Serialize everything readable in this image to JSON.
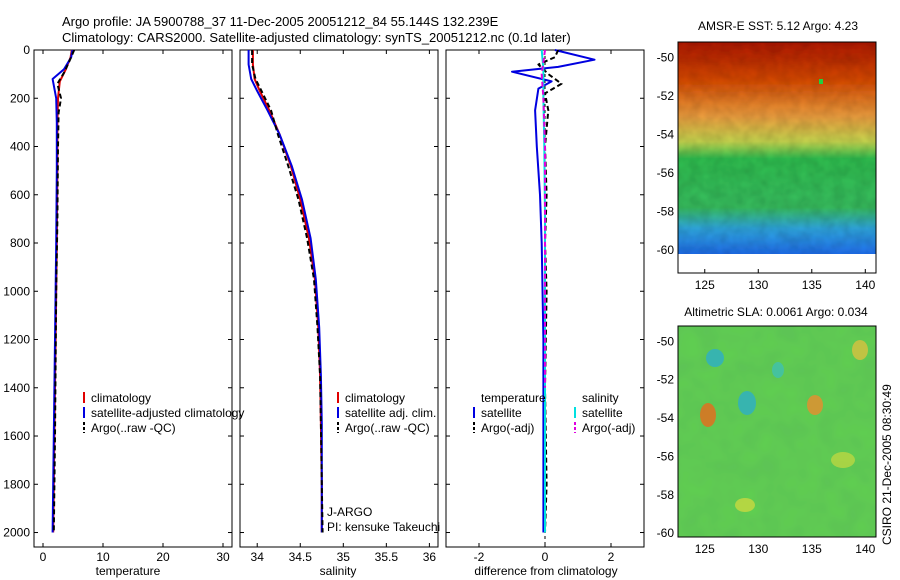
{
  "title": {
    "line1": "Argo profile: JA 5900788_37 11-Dec-2005 20051212_84 55.144S 132.239E",
    "line2": "Climatology: CARS2000. Satellite-adjusted climatology: synTS_20051212.nc (0.1d later)"
  },
  "credit": "CSIRO 21-Dec-2005 08:30:49",
  "colors": {
    "clim": "#e00000",
    "sat": "#0000e0",
    "argo": "#000000",
    "sal_sat": "#00e0e0",
    "sal_argo": "#e000e0"
  },
  "chart_data": [
    {
      "type": "line",
      "id": "temperature",
      "xlabel": "temperature",
      "ylabel": "",
      "xlim": [
        -1.5,
        31.5
      ],
      "ylim": [
        2060,
        0
      ],
      "xticks": [
        0,
        10,
        20,
        30
      ],
      "yticks": [
        0,
        200,
        400,
        600,
        800,
        1000,
        1200,
        1400,
        1600,
        1800,
        2000
      ],
      "legend": [
        "climatology",
        "satellite-adjusted climatology",
        "Argo(..raw -QC)"
      ],
      "series": [
        {
          "name": "climatology",
          "style": "clim",
          "x": [
            4.8,
            4.6,
            3.8,
            2.8,
            2.5,
            2.4,
            2.4,
            2.3,
            2.2,
            2.1,
            2.0,
            1.9,
            1.8,
            1.7
          ],
          "y": [
            0,
            30,
            80,
            130,
            200,
            300,
            500,
            800,
            1000,
            1200,
            1400,
            1600,
            1800,
            2000
          ]
        },
        {
          "name": "satellite-adjusted climatology",
          "style": "sat",
          "x": [
            4.9,
            4.7,
            3.5,
            1.6,
            2.2,
            2.3,
            2.3,
            2.2,
            2.1,
            2.0,
            1.9,
            1.8,
            1.7,
            1.6
          ],
          "y": [
            0,
            30,
            80,
            120,
            200,
            300,
            500,
            800,
            1000,
            1200,
            1400,
            1600,
            1800,
            2000
          ]
        },
        {
          "name": "Argo(..raw -QC)",
          "style": "argo",
          "x": [
            5.2,
            4.5,
            3.6,
            2.4,
            3.0,
            2.6,
            2.5,
            2.4,
            2.2,
            2.1,
            2.0,
            1.9,
            1.8
          ],
          "y": [
            0,
            40,
            90,
            140,
            200,
            260,
            400,
            700,
            1000,
            1300,
            1600,
            1800,
            2000
          ]
        }
      ]
    },
    {
      "type": "line",
      "id": "salinity",
      "xlabel": "salinity",
      "ylabel": "",
      "xlim": [
        33.8,
        36.1
      ],
      "ylim": [
        2060,
        0
      ],
      "xticks": [
        34,
        34.5,
        35,
        35.5,
        36
      ],
      "xtick_labels": [
        "34",
        "34.5",
        "35",
        "35.5",
        "36"
      ],
      "yticks": [
        0,
        200,
        400,
        600,
        800,
        1000,
        1200,
        1400,
        1600,
        1800,
        2000
      ],
      "legend": [
        "climatology",
        "satellite adj. clim.",
        "Argo(..raw -QC)"
      ],
      "annotations": [
        "J-ARGO",
        "PI: kensuke Takeuchi"
      ],
      "series": [
        {
          "name": "climatology",
          "style": "clim",
          "x": [
            33.95,
            33.95,
            33.97,
            34.03,
            34.14,
            34.26,
            34.39,
            34.5,
            34.6,
            34.67,
            34.71,
            34.73,
            34.74,
            34.75,
            34.75
          ],
          "y": [
            0,
            60,
            120,
            170,
            250,
            350,
            480,
            620,
            780,
            950,
            1150,
            1350,
            1550,
            1800,
            2000
          ]
        },
        {
          "name": "satellite adj. clim.",
          "style": "sat",
          "x": [
            33.9,
            33.9,
            33.93,
            34.0,
            34.12,
            34.26,
            34.4,
            34.52,
            34.62,
            34.68,
            34.72,
            34.74,
            34.75,
            34.75,
            34.75
          ],
          "y": [
            0,
            60,
            120,
            170,
            250,
            350,
            480,
            620,
            780,
            950,
            1150,
            1350,
            1550,
            1800,
            2000
          ]
        },
        {
          "name": "Argo(..raw -QC)",
          "style": "argo",
          "x": [
            33.94,
            33.94,
            33.98,
            34.05,
            34.16,
            34.24,
            34.36,
            34.48,
            34.58,
            34.66,
            34.7,
            34.73,
            34.74,
            34.75,
            34.76
          ],
          "y": [
            0,
            60,
            120,
            170,
            250,
            350,
            480,
            620,
            780,
            950,
            1150,
            1350,
            1550,
            1800,
            2000
          ]
        }
      ]
    },
    {
      "type": "line",
      "id": "difference",
      "xlabel": "difference from climatology",
      "ylabel": "",
      "xlim": [
        -3,
        3
      ],
      "ylim": [
        2060,
        0
      ],
      "xticks": [
        -2,
        0,
        2
      ],
      "yticks": [
        0,
        200,
        400,
        600,
        800,
        1000,
        1200,
        1400,
        1600,
        1800,
        2000
      ],
      "legend_headers": [
        "temperature",
        "salinity"
      ],
      "legend": [
        "satellite",
        "Argo(-adj)",
        "satellite",
        "Argo(-adj)"
      ],
      "series": [
        {
          "name": "temperature satellite",
          "style": "sat",
          "x": [
            0.3,
            1.5,
            0.4,
            -1.0,
            0.2,
            -0.2,
            -0.3,
            -0.25,
            -0.15,
            -0.1,
            -0.05,
            -0.05,
            -0.05
          ],
          "y": [
            0,
            40,
            70,
            90,
            130,
            160,
            250,
            400,
            600,
            800,
            1200,
            1600,
            2000
          ]
        },
        {
          "name": "temperature Argo(-adj)",
          "style": "argo",
          "x": [
            0.4,
            0.3,
            -0.2,
            0.1,
            0.5,
            0.0,
            0.1,
            0.0,
            0.05,
            0.0,
            0.05,
            0.0,
            0.05,
            0.0
          ],
          "y": [
            0,
            30,
            60,
            100,
            140,
            180,
            250,
            400,
            600,
            800,
            1000,
            1400,
            1800,
            2000
          ]
        },
        {
          "name": "salinity satellite",
          "style": "sal_sat",
          "x": [
            -0.1,
            -0.05,
            -0.05,
            -0.02,
            0.0,
            0.0,
            0.0,
            0.0
          ],
          "y": [
            0,
            80,
            200,
            400,
            700,
            1000,
            1500,
            2000
          ]
        },
        {
          "name": "salinity Argo(-adj)",
          "style": "sal_argo",
          "x": [
            0.0,
            -0.1,
            -0.05,
            0.0,
            0.0,
            0.0,
            0.0
          ],
          "y": [
            0,
            100,
            200,
            400,
            700,
            1000,
            1400
          ]
        }
      ]
    },
    {
      "type": "heatmap",
      "id": "sst-map",
      "title": "AMSR-E SST: 5.12  Argo: 4.23",
      "xlim": [
        122.5,
        141
      ],
      "ylim": [
        -61.2,
        -49.2
      ],
      "xticks": [
        125,
        130,
        135,
        140
      ],
      "yticks": [
        -50,
        -52,
        -54,
        -56,
        -58,
        -60
      ],
      "marker": {
        "lon": 132.239,
        "lat": -55.144
      }
    },
    {
      "type": "heatmap",
      "id": "sla-map",
      "title": "Altimetric SLA: 0.0061  Argo: 0.034",
      "xlim": [
        122.5,
        141
      ],
      "ylim": [
        -60.2,
        -49.2
      ],
      "xticks": [
        125,
        130,
        135,
        140
      ],
      "yticks": [
        -50,
        -52,
        -54,
        -56,
        -58,
        -60
      ],
      "marker": {
        "lon": 132.239,
        "lat": -55.144
      }
    }
  ]
}
